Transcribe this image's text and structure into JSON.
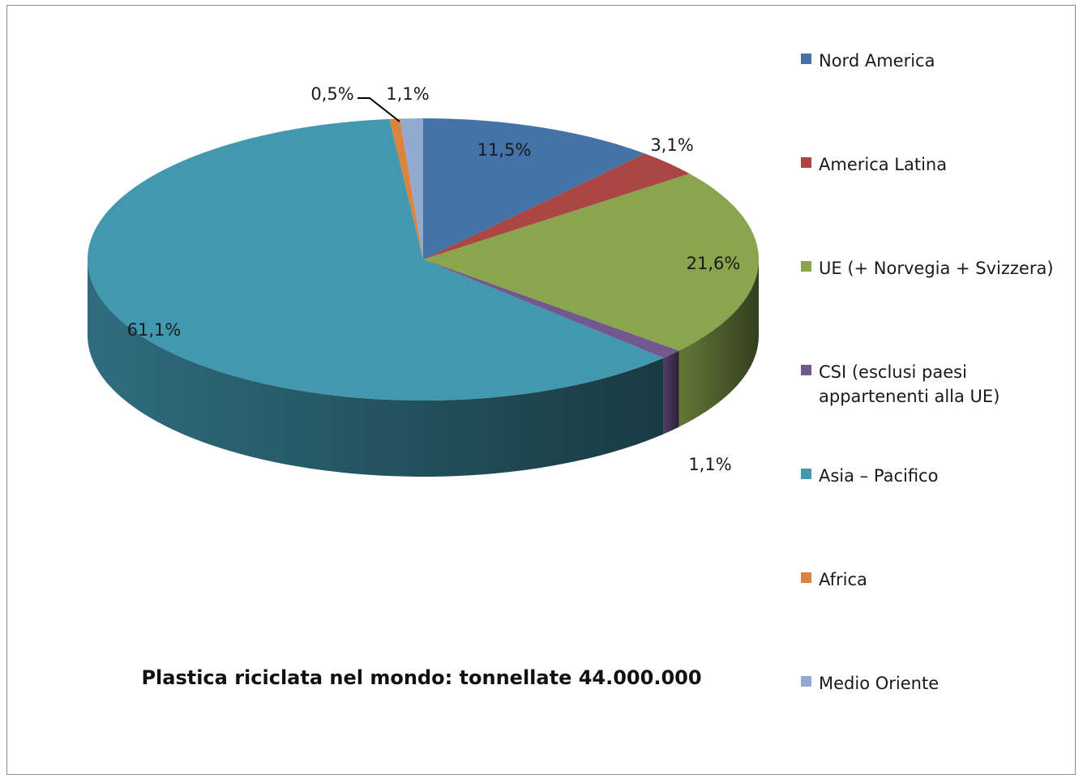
{
  "chart_data": {
    "type": "pie",
    "title": "Plastica riciclata nel mondo: tonnellate 44.000.000",
    "legend_position": "right",
    "slices": [
      {
        "label": "Nord America",
        "value": 11.5,
        "display": "11,5%",
        "color": "#4572A7"
      },
      {
        "label": "America Latina",
        "value": 3.1,
        "display": "3,1%",
        "color": "#AA4643"
      },
      {
        "label": "UE (+ Norvegia + Svizzera)",
        "value": 21.6,
        "display": "21,6%",
        "color": "#89A54E"
      },
      {
        "label": "CSI (esclusi paesi appartenenti alla UE)",
        "value": 1.1,
        "display": "1,1%",
        "color": "#71588F"
      },
      {
        "label": "Asia – Pacifico",
        "value": 61.1,
        "display": "61,1%",
        "color": "#4198AF"
      },
      {
        "label": "Africa",
        "value": 0.5,
        "display": "0,5%",
        "color": "#DB843D"
      },
      {
        "label": "Medio Oriente",
        "value": 1.1,
        "display": "1,1%",
        "color": "#93A9CF"
      }
    ]
  }
}
